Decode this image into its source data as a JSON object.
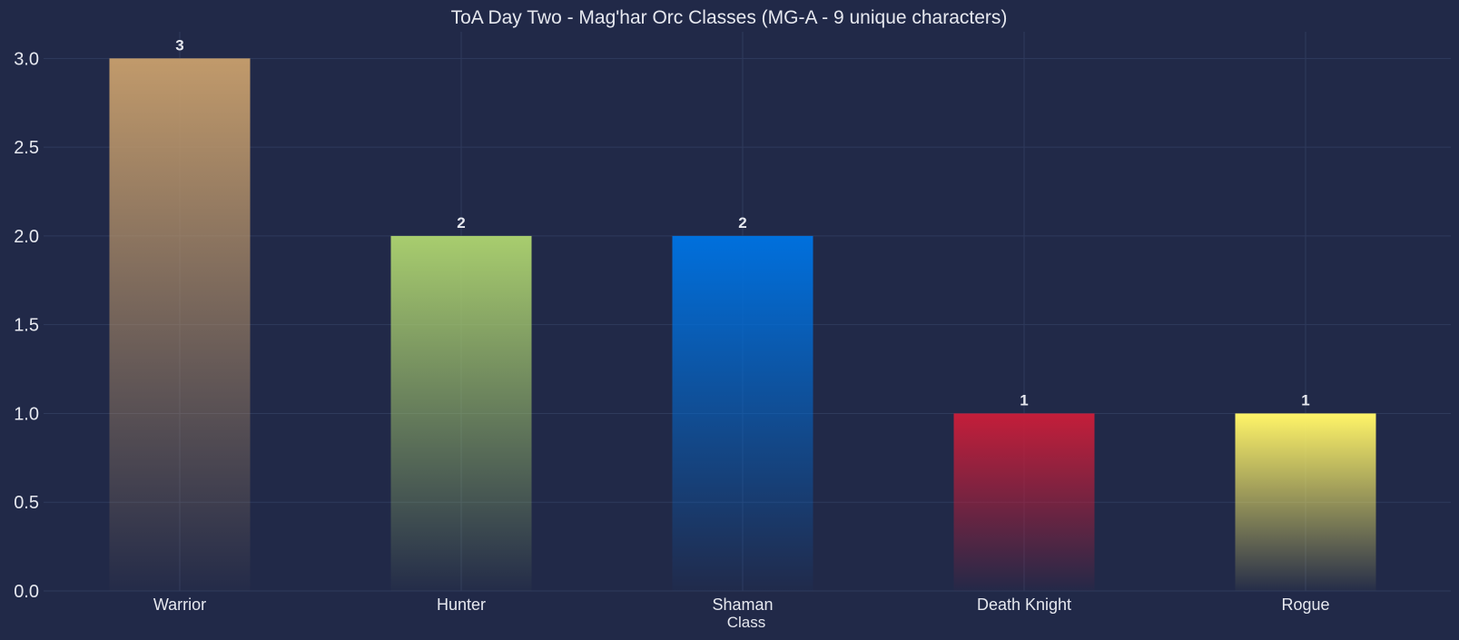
{
  "chart_data": {
    "type": "bar",
    "title": "ToA Day Two - Mag'har Orc Classes (MG-A - 9 unique characters)",
    "xlabel": "Class",
    "ylabel": "",
    "categories": [
      "Warrior",
      "Hunter",
      "Shaman",
      "Death Knight",
      "Rogue"
    ],
    "values": [
      3,
      2,
      2,
      1,
      1
    ],
    "data_labels": [
      "3",
      "2",
      "2",
      "1",
      "1"
    ],
    "colors": [
      "#c19a6b",
      "#a8cd6e",
      "#0070dd",
      "#c41e3a",
      "#fff468"
    ],
    "ylim": [
      0,
      3.15
    ],
    "yticks": [
      0.0,
      0.5,
      1.0,
      1.5,
      2.0,
      2.5,
      3.0
    ],
    "ytick_labels": [
      "0.0",
      "0.5",
      "1.0",
      "1.5",
      "2.0",
      "2.5",
      "3.0"
    ],
    "grid": true,
    "background": "#212948"
  }
}
